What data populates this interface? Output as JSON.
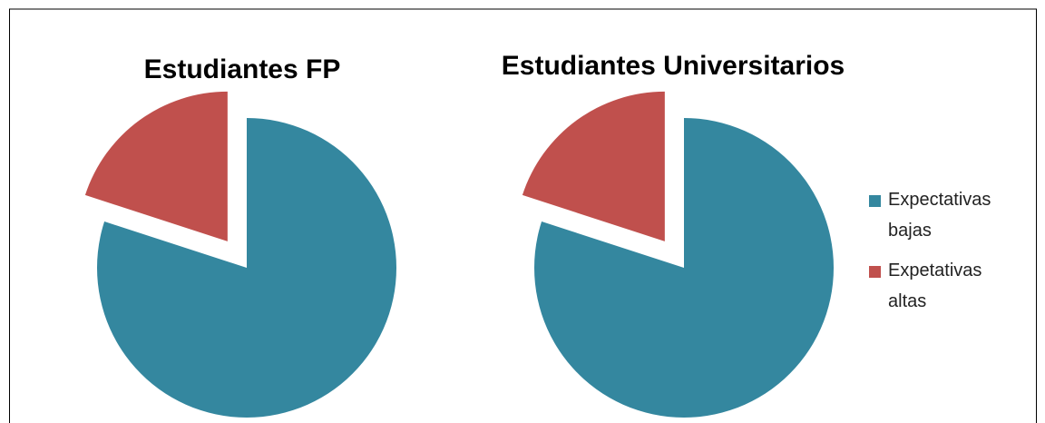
{
  "chart_data": [
    {
      "type": "pie",
      "title": "Estudiantes FP",
      "categories": [
        "Expectativas bajas",
        "Expetativas altas"
      ],
      "values": [
        80,
        20
      ],
      "colors": [
        "#34879f",
        "#c0504d"
      ],
      "exploded": [
        false,
        true
      ]
    },
    {
      "type": "pie",
      "title": "Estudiantes Universitarios",
      "categories": [
        "Expectativas bajas",
        "Expetativas altas"
      ],
      "values": [
        80,
        20
      ],
      "colors": [
        "#34879f",
        "#c0504d"
      ],
      "exploded": [
        false,
        true
      ],
      "legend": "right"
    }
  ]
}
